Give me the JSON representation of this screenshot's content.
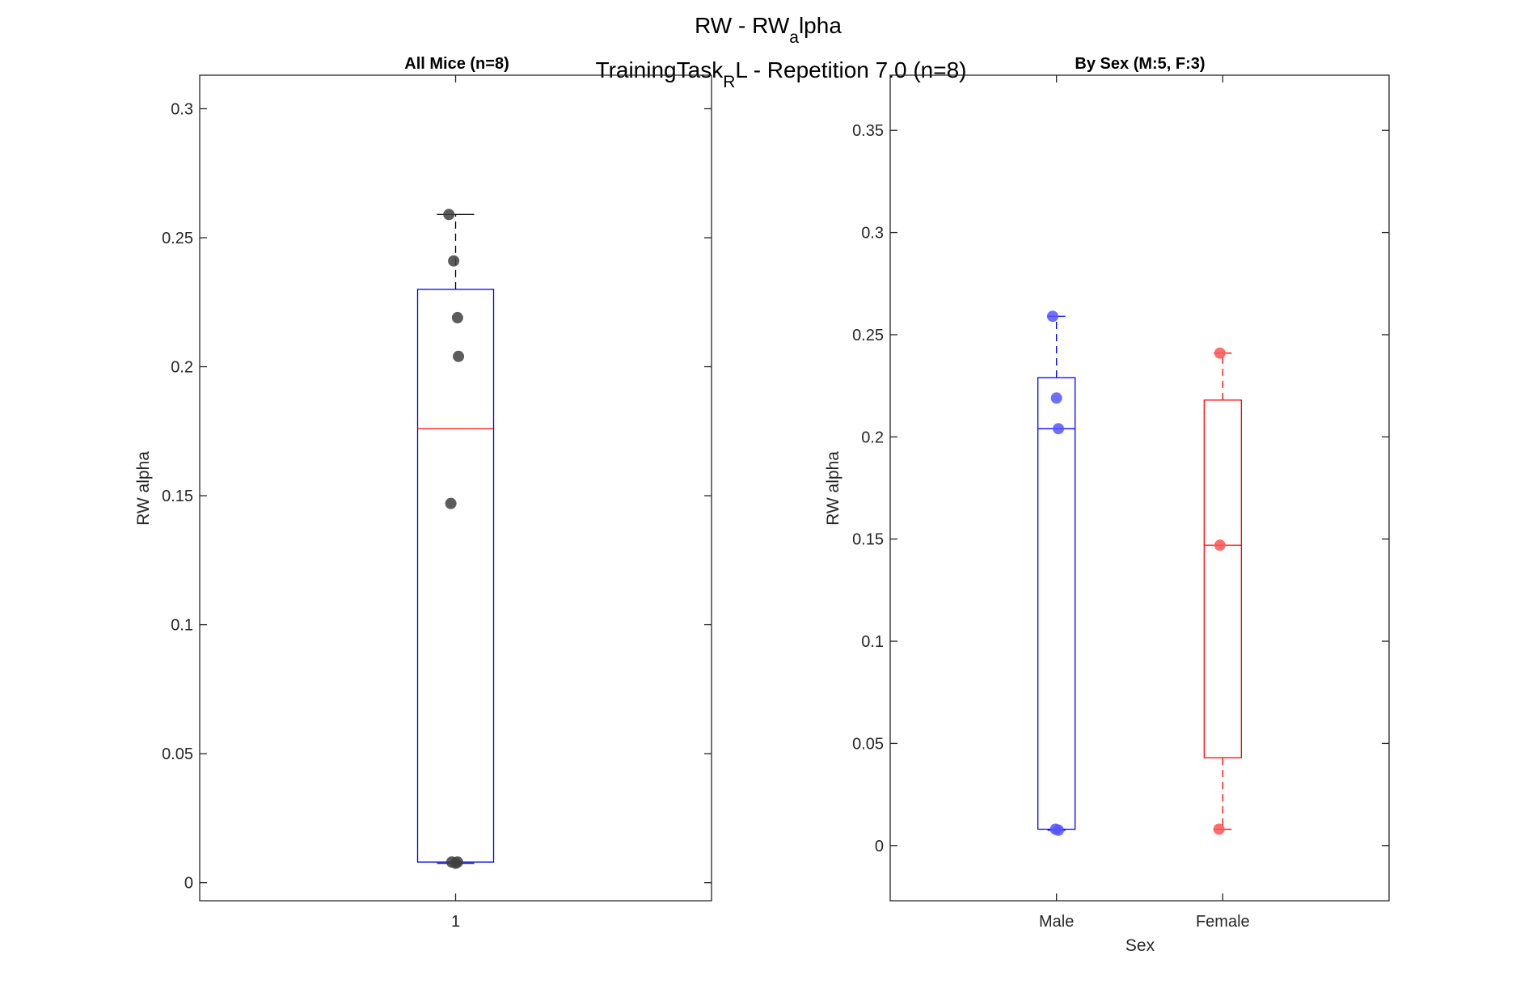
{
  "figure": {
    "title_line1_main": "RW - RW",
    "title_line1_sub": "a",
    "title_line1_rest": "lpha",
    "title_line2_main": "TrainingTask",
    "title_line2_sub": "R",
    "title_line2_rest": "L - Repetition 7.0 (n=8)"
  },
  "chart_data": [
    {
      "type": "box",
      "title": "All Mice (n=8)",
      "ylabel": "RW alpha",
      "xlabel": "",
      "categories": [
        "1"
      ],
      "ylim": [
        -0.007,
        0.313
      ],
      "yticks": [
        0,
        0.05,
        0.1,
        0.15,
        0.2,
        0.25,
        0.3
      ],
      "ytick_labels": [
        "0",
        "0.05",
        "0.1",
        "0.15",
        "0.2",
        "0.25",
        "0.3"
      ],
      "boxes": [
        {
          "category": "1",
          "color": "#0000ff",
          "median_color": "#ff0000",
          "whisker_color": "#000000",
          "q1": 0.008,
          "median": 0.176,
          "q3": 0.23,
          "whisker_low": 0.0075,
          "whisker_high": 0.259
        }
      ],
      "points": {
        "color": "#404040",
        "values": [
          0.259,
          0.241,
          0.219,
          0.204,
          0.147,
          0.008,
          0.0075,
          0.008
        ],
        "jitter": [
          -0.07,
          -0.02,
          0.02,
          0.03,
          -0.05,
          -0.04,
          0.0,
          0.02
        ]
      }
    },
    {
      "type": "box",
      "title": "By Sex (M:5, F:3)",
      "ylabel": "RW alpha",
      "xlabel": "Sex",
      "categories": [
        "Male",
        "Female"
      ],
      "ylim": [
        -0.027,
        0.377
      ],
      "yticks": [
        0,
        0.05,
        0.1,
        0.15,
        0.2,
        0.25,
        0.3,
        0.35
      ],
      "ytick_labels": [
        "0",
        "0.05",
        "0.1",
        "0.15",
        "0.2",
        "0.25",
        "0.3",
        "0.35"
      ],
      "boxes": [
        {
          "category": "Male",
          "color": "#0000ff",
          "median_color": "#0000ff",
          "whisker_color": "#0000ff",
          "q1": 0.008,
          "median": 0.204,
          "q3": 0.229,
          "whisker_low": 0.0075,
          "whisker_high": 0.259
        },
        {
          "category": "Female",
          "color": "#ff0000",
          "median_color": "#ff0000",
          "whisker_color": "#ff0000",
          "q1": 0.043,
          "median": 0.147,
          "q3": 0.218,
          "whisker_low": 0.008,
          "whisker_high": 0.241
        }
      ],
      "points_by_category": [
        {
          "category": "Male",
          "color": "#5555ff",
          "values": [
            0.259,
            0.219,
            0.204,
            0.008,
            0.0075
          ],
          "jitter": [
            -0.04,
            0.0,
            0.02,
            -0.01,
            0.02
          ]
        },
        {
          "category": "Female",
          "color": "#ff5555",
          "values": [
            0.241,
            0.147,
            0.008
          ],
          "jitter": [
            -0.03,
            -0.03,
            -0.04
          ]
        }
      ]
    }
  ]
}
